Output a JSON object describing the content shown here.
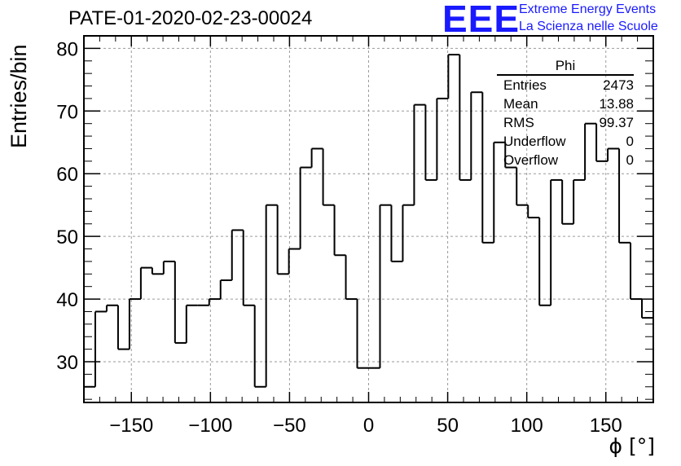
{
  "title": "PATE-01-2020-02-23-00024",
  "logo": {
    "mark": "EEE",
    "line1": "Extreme Energy Events",
    "line2": "La Scienza nelle Scuole",
    "color": "#1a1aff"
  },
  "stats_box": {
    "name": "Phi",
    "rows": [
      {
        "label": "Entries",
        "value": "2473"
      },
      {
        "label": "Mean",
        "value": "13.88"
      },
      {
        "label": "RMS",
        "value": "99.37"
      },
      {
        "label": "Underflow",
        "value": "0"
      },
      {
        "label": "Overflow",
        "value": "0"
      }
    ]
  },
  "chart_data": {
    "type": "bar",
    "style": "step-histogram",
    "xlabel": "ϕ [°]",
    "ylabel": "Entries/bin",
    "xlim": [
      -180,
      180
    ],
    "ylim": [
      23.5,
      82
    ],
    "xticks": [
      -150,
      -100,
      -50,
      0,
      50,
      100,
      150
    ],
    "yticks": [
      30,
      40,
      50,
      60,
      70,
      80
    ],
    "grid": true,
    "bin_width": 7.2,
    "values": [
      26,
      38,
      39,
      32,
      40,
      45,
      44,
      46,
      33,
      39,
      39,
      40,
      43,
      51,
      39,
      26,
      55,
      44,
      48,
      61,
      64,
      55,
      47,
      40,
      29,
      29,
      55,
      46,
      55,
      71,
      59,
      72,
      79,
      59,
      73,
      49,
      65,
      61,
      55,
      53,
      39,
      59,
      52,
      59,
      68,
      62,
      64,
      49,
      40,
      37
    ],
    "line_color": "#000000",
    "grid_color": "#9a9a9a"
  }
}
